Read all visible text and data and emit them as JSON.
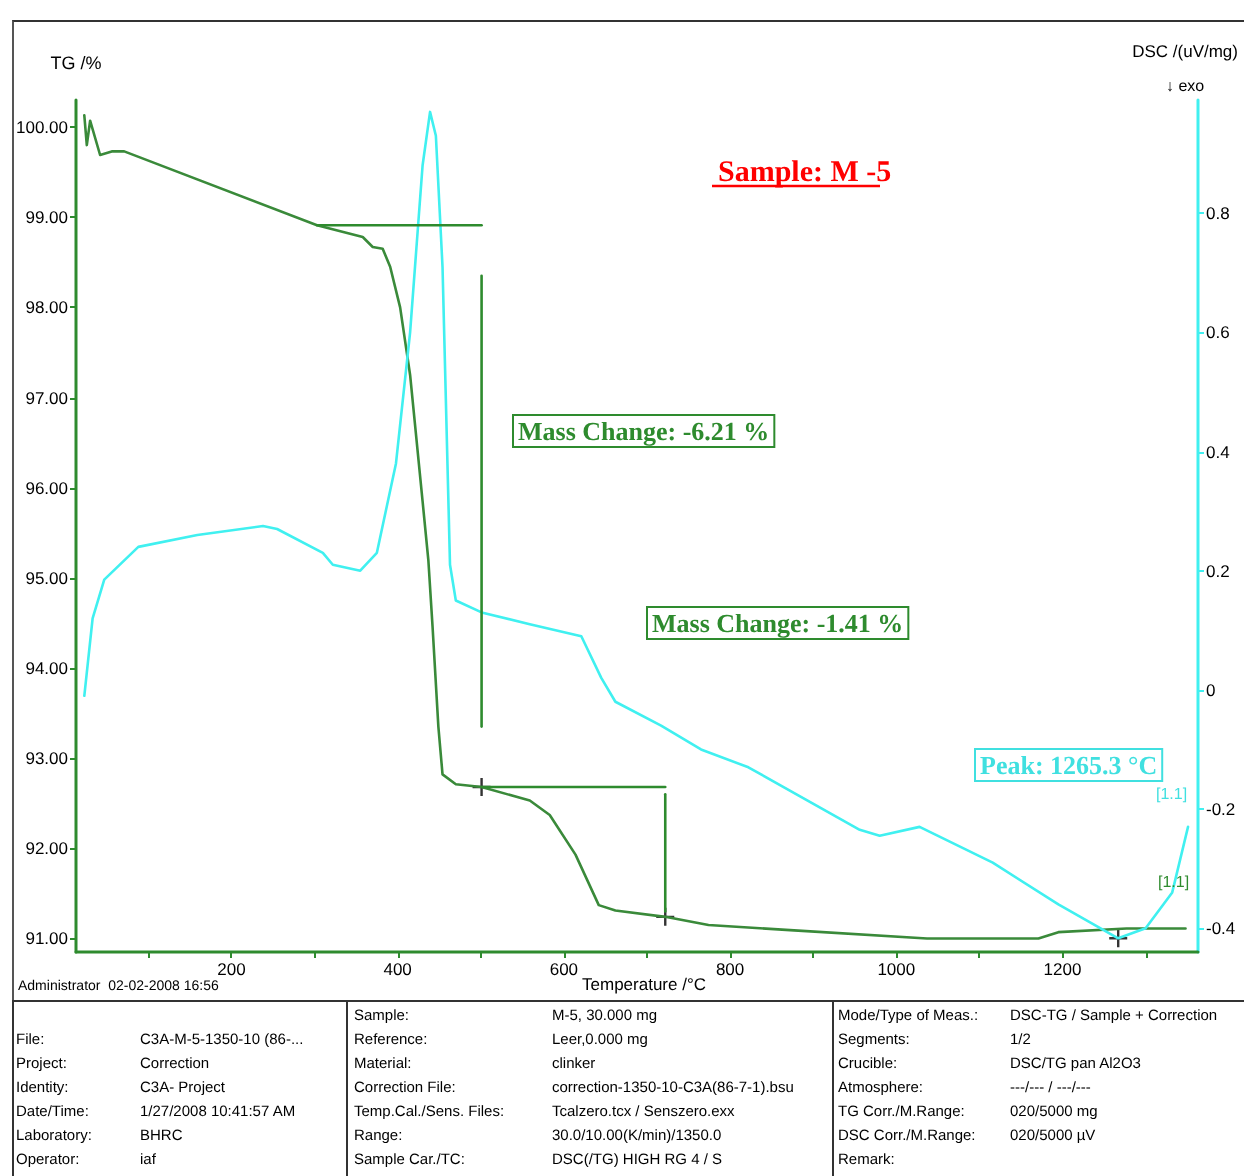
{
  "chart_data": {
    "type": "line",
    "title": "Sample: M -5",
    "xlabel": "Temperature /°C",
    "ylabel": "TG /%",
    "y2label": "DSC /(uV/mg)",
    "xlim": [
      13,
      1363
    ],
    "xticks": [
      {
        "value": 100,
        "label": null
      },
      200,
      {
        "value": 300,
        "label": null
      },
      400,
      {
        "value": 500,
        "label": null
      },
      600,
      {
        "value": 700,
        "label": null
      },
      800,
      {
        "value": 900,
        "label": null
      },
      1000,
      {
        "value": 1100,
        "label": null
      },
      1200,
      {
        "value": 1300,
        "label": null
      }
    ],
    "ylim": [
      90.85,
      100.3
    ],
    "yticks": [
      {
        "value": 91,
        "label": "91.00"
      },
      {
        "value": 92,
        "label": "92.00"
      },
      {
        "value": 93,
        "label": "93.00"
      },
      {
        "value": 94,
        "label": "94.00"
      },
      {
        "value": 95,
        "label": "95.00"
      },
      {
        "value": 96,
        "label": "96.00"
      },
      {
        "value": 97,
        "label": "97.00"
      },
      {
        "value": 98,
        "label": "98.00"
      },
      {
        "value": 99,
        "label": "99.00"
      },
      {
        "value": 100,
        "label": "100.00"
      }
    ],
    "y2lim": [
      -0.44,
      0.99
    ],
    "y2ticks": [
      -0.4,
      -0.2,
      0,
      0.2,
      0.4,
      0.6,
      0.8
    ],
    "series": [
      {
        "color": "#3a8a3a",
        "x": [
          23,
          26,
          30,
          42,
          56,
          71,
          303,
          358,
          370,
          382,
          391,
          403,
          415,
          430,
          437,
          442,
          449,
          454,
          470,
          501,
          559,
          583,
          614,
          642,
          662,
          722,
          774,
          877,
          1037,
          1171,
          1195,
          1277,
          1348
        ],
        "values": [
          100.13,
          99.8,
          100.07,
          99.69,
          99.73,
          99.73,
          98.91,
          98.78,
          98.67,
          98.65,
          98.45,
          98.0,
          97.25,
          95.85,
          95.19,
          94.46,
          93.35,
          92.82,
          92.71,
          92.68,
          92.53,
          92.37,
          91.93,
          91.37,
          91.31,
          91.24,
          91.15,
          91.09,
          91.0,
          91.0,
          91.07,
          91.11,
          91.11
        ]
      },
      {
        "color": "#40f0f0",
        "axis": "y2",
        "x": [
          23,
          33,
          47,
          88,
          159,
          238,
          255,
          310,
          322,
          355,
          375,
          398,
          415,
          430,
          439,
          446,
          454,
          463,
          470,
          501,
          559,
          621,
          645,
          662,
          717,
          765,
          822,
          956,
          980,
          1028,
          1116,
          1195,
          1267,
          1300,
          1332,
          1351
        ],
        "values": [
          -0.01,
          0.12,
          0.185,
          0.24,
          0.26,
          0.275,
          0.27,
          0.23,
          0.21,
          0.2,
          0.23,
          0.38,
          0.6,
          0.88,
          0.97,
          0.93,
          0.71,
          0.21,
          0.15,
          0.13,
          0.11,
          0.09,
          0.02,
          -0.02,
          -0.06,
          -0.1,
          -0.13,
          -0.235,
          -0.245,
          -0.23,
          -0.29,
          -0.36,
          -0.417,
          -0.4,
          -0.34,
          -0.23
        ]
      },
      {
        "type": "line",
        "color": "#2e8b2e",
        "x": [
          303,
          501
        ],
        "values": [
          98.91,
          98.91
        ]
      },
      {
        "type": "line",
        "color": "#2e8b2e",
        "x": [
          501,
          722
        ],
        "values": [
          92.68,
          92.68
        ]
      },
      {
        "type": "line",
        "color": "#2e8b2e",
        "x": [
          501,
          501
        ],
        "values": [
          98.35,
          93.35
        ]
      },
      {
        "type": "line",
        "color": "#2e8b2e",
        "x": [
          722,
          722
        ],
        "values": [
          92.6,
          91.3
        ]
      },
      {
        "type": "scatter",
        "marker": "cross",
        "color": "#000000",
        "x": [
          501,
          722
        ],
        "values": [
          92.68,
          91.24
        ]
      },
      {
        "type": "scatter",
        "marker": "cross",
        "color": "#000000",
        "axis": "y2",
        "x": [
          1267
        ],
        "values": [
          -0.417
        ]
      }
    ],
    "annotations": [
      "Mass Change: -6.21 %",
      "Mass Change: -1.41 %",
      "Peak: 1265.3 °C",
      "[1.1]",
      "[1.1]",
      "↓ exo",
      "Administrator  02-02-2008 16:56",
      "File:",
      "C3A-M-5-1350-10 (86-...",
      "Project:",
      "Correction",
      "Identity:",
      "C3A- Project",
      "Date/Time:",
      "1/27/2008 10:41:57 AM",
      "Laboratory:",
      "BHRC",
      "Operator:",
      "iaf",
      "Sample:",
      "M-5, 30.000 mg",
      "Reference:",
      "Leer,0.000 mg",
      "Material:",
      "clinker",
      "Correction File:",
      "correction-1350-10-C3A(86-7-1).bsu",
      "Temp.Cal./Sens. Files:",
      "Tcalzero.tcx / Senszero.exx",
      "Range:",
      "30.0/10.00(K/min)/1350.0",
      "Sample Car./TC:",
      "DSC(/TG) HIGH RG 4 / S",
      "Mode/Type of Meas.:",
      "DSC-TG / Sample + Correction",
      "Segments:",
      "1/2",
      "Crucible:",
      "DSC/TG pan Al2O3",
      "Atmosphere:",
      "---/--- / ---/---",
      "TG Corr./M.Range:",
      "020/5000 mg",
      "DSC Corr./M.Range:",
      "020/5000 µV",
      "Remark:"
    ]
  }
}
